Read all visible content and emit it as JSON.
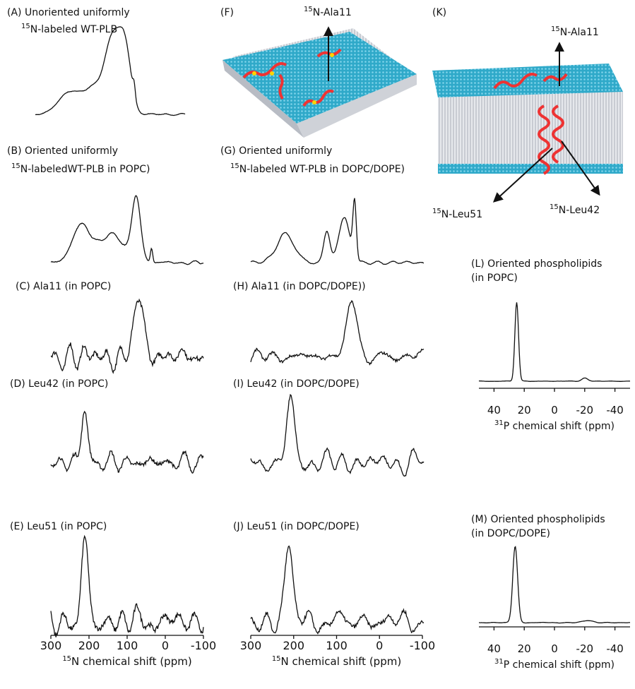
{
  "panels": {
    "A": [
      {
        "text": "(A) Unoriented uniformly"
      },
      {
        "sup": "15",
        "text": "N-labeled WT-PLB"
      }
    ],
    "B": [
      {
        "text": "(B) Oriented uniformly"
      },
      {
        "sup": "15",
        "text": "N-labeledWT-PLB in POPC)"
      }
    ],
    "C": [
      {
        "text": "(C) Ala11 (in POPC)"
      }
    ],
    "D": [
      {
        "text": "(D) Leu42 (in POPC)"
      }
    ],
    "E": [
      {
        "text": "(E) Leu51 (in POPC)"
      }
    ],
    "F": [
      {
        "text": "(F)"
      },
      {
        "sup": "15",
        "text": "N-Ala11"
      }
    ],
    "G": [
      {
        "text": "(G) Oriented uniformly"
      },
      {
        "sup": "15",
        "text": "N-labeled WT-PLB in DOPC/DOPE)"
      }
    ],
    "H": [
      {
        "text": "(H) Ala11 (in DOPC/DOPE))"
      }
    ],
    "I": [
      {
        "text": "(I) Leu42 (in DOPC/DOPE)"
      }
    ],
    "J": [
      {
        "text": "(J) Leu51 (in DOPC/DOPE)"
      }
    ],
    "K": [
      {
        "text": "(K)"
      },
      {
        "sup": "15",
        "text": "N-Ala11"
      },
      {
        "sup": "15",
        "text": "N-Leu51"
      },
      {
        "sup": "15",
        "text": "N-Leu42"
      }
    ],
    "L": [
      {
        "text": "(L) Oriented phospholipids"
      },
      {
        "text": "(in POPC)"
      }
    ],
    "M": [
      {
        "text": "(M) Oriented phospholipids"
      },
      {
        "text": "(in DOPC/DOPE)"
      }
    ]
  },
  "axes": {
    "left": {
      "xlim": [
        300,
        -100
      ],
      "ticks": [
        300,
        200,
        100,
        0,
        -100
      ],
      "title": {
        "sup": "15",
        "text": "N chemical shift (ppm)"
      }
    },
    "middle": {
      "xlim": [
        300,
        -100
      ],
      "ticks": [
        300,
        200,
        100,
        0,
        -100
      ],
      "title": {
        "sup": "15",
        "text": "N chemical shift (ppm)"
      }
    },
    "L": {
      "xlim": [
        50,
        -50
      ],
      "ticks": [
        40,
        20,
        0,
        -20,
        -40
      ],
      "title": {
        "sup": "31",
        "text": "P chemical shift (ppm)"
      }
    },
    "M": {
      "xlim": [
        50,
        -50
      ],
      "ticks": [
        40,
        20,
        0,
        -20,
        -40
      ],
      "title": {
        "sup": "31",
        "text": "P chemical shift (ppm)"
      }
    }
  }
}
